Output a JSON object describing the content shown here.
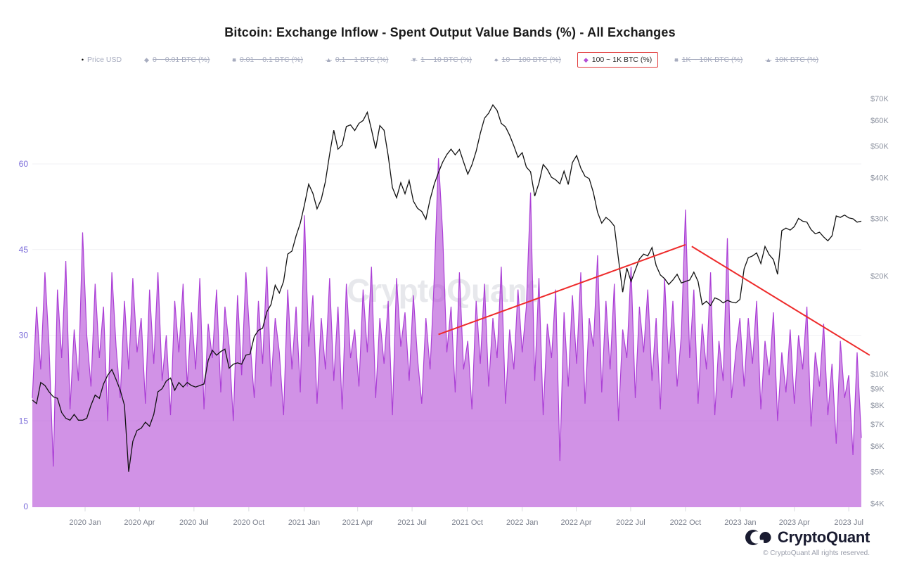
{
  "title": "Bitcoin: Exchange Inflow - Spent Output Value Bands (%) - All Exchanges",
  "legend": {
    "items": [
      {
        "label": "Price USD",
        "marker": "dot",
        "state": "price"
      },
      {
        "label": "0 ~ 0.01 BTC (%)",
        "marker": "diamond",
        "state": "disabled"
      },
      {
        "label": "0.01 ~ 0.1 BTC (%)",
        "marker": "square",
        "state": "disabled"
      },
      {
        "label": "0.1 ~ 1 BTC (%)",
        "marker": "triangle-up",
        "state": "disabled"
      },
      {
        "label": "1 ~ 10 BTC (%)",
        "marker": "triangle-down",
        "state": "disabled"
      },
      {
        "label": "10 ~ 100 BTC (%)",
        "marker": "circle",
        "state": "disabled"
      },
      {
        "label": "100 ~ 1K BTC (%)",
        "marker": "diamond",
        "state": "active",
        "boxed": true
      },
      {
        "label": "1K ~ 10K BTC (%)",
        "marker": "square",
        "state": "disabled"
      },
      {
        "label": "10K BTC (%)",
        "marker": "triangle-up",
        "state": "disabled"
      }
    ]
  },
  "watermark": "CryptoQuant",
  "footer": {
    "brand": "CryptoQuant",
    "copyright": "© CryptoQuant All rights reserved."
  },
  "colors": {
    "inflow_line": "#ab3fd6",
    "inflow_fill": "rgba(180,79,214,0.62)",
    "price_line": "#111111",
    "trendline": "#ee2b2b",
    "highlight_box": "#e13b3b",
    "left_axis_text": "#7b6cd9",
    "right_axis_text": "#8d93a0",
    "x_axis_text": "#787d8a",
    "grid": "#f1f1f4",
    "tick": "#d9dbe0"
  },
  "chart_data": {
    "type": "area+line",
    "title": "Bitcoin: Exchange Inflow - Spent Output Value Bands (%) - All Exchanges",
    "x_start_date": "2019-10-06",
    "x_step": "1 week",
    "x_ticks": [
      {
        "label": "2020 Jan",
        "week": 12.6
      },
      {
        "label": "2020 Apr",
        "week": 25.6
      },
      {
        "label": "2020 Jul",
        "week": 38.6
      },
      {
        "label": "2020 Oct",
        "week": 51.7
      },
      {
        "label": "2021 Jan",
        "week": 64.9
      },
      {
        "label": "2021 Apr",
        "week": 77.7
      },
      {
        "label": "2021 Jul",
        "week": 90.7
      },
      {
        "label": "2021 Oct",
        "week": 103.9
      },
      {
        "label": "2022 Jan",
        "week": 117.0
      },
      {
        "label": "2022 Apr",
        "week": 129.9
      },
      {
        "label": "2022 Jul",
        "week": 142.9
      },
      {
        "label": "2022 Oct",
        "week": 156.0
      },
      {
        "label": "2023 Jan",
        "week": 169.1
      },
      {
        "label": "2023 Apr",
        "week": 182.0
      },
      {
        "label": "2023 Jul",
        "week": 195.0
      }
    ],
    "left_axis": {
      "title": "Spent Output Value Band share (%)",
      "ticks": [
        0,
        15,
        30,
        45,
        60
      ],
      "range": [
        0,
        72.7
      ],
      "scale": "linear"
    },
    "right_axis": {
      "title": "Price USD",
      "scale": "log",
      "ticks": [
        {
          "label": "$70K",
          "value_k": 70
        },
        {
          "label": "$60K",
          "value_k": 60
        },
        {
          "label": "$50K",
          "value_k": 50
        },
        {
          "label": "$40K",
          "value_k": 40
        },
        {
          "label": "$30K",
          "value_k": 30
        },
        {
          "label": "$20K",
          "value_k": 20
        },
        {
          "label": "$10K",
          "value_k": 10
        },
        {
          "label": "$9K",
          "value_k": 9
        },
        {
          "label": "$8K",
          "value_k": 8
        },
        {
          "label": "$7K",
          "value_k": 7
        },
        {
          "label": "$6K",
          "value_k": 6
        },
        {
          "label": "$5K",
          "value_k": 5
        },
        {
          "label": "$4K",
          "value_k": 4
        }
      ]
    },
    "series": [
      {
        "name": "100 ~ 1K BTC (%)",
        "axis": "left",
        "render": "area",
        "values": [
          19,
          35,
          24,
          41,
          28,
          7,
          38,
          26,
          43,
          17,
          31,
          22,
          48,
          30,
          21,
          39,
          26,
          35,
          15,
          41,
          28,
          19,
          36,
          24,
          40,
          27,
          33,
          18,
          38,
          25,
          41,
          22,
          30,
          16,
          36,
          27,
          39,
          21,
          34,
          24,
          40,
          17,
          32,
          26,
          38,
          20,
          35,
          28,
          15,
          37,
          23,
          41,
          29,
          19,
          36,
          25,
          42,
          21,
          33,
          27,
          16,
          38,
          24,
          35,
          20,
          51,
          28,
          37,
          18,
          33,
          24,
          40,
          22,
          35,
          17,
          39,
          26,
          31,
          21,
          38,
          27,
          42,
          19,
          33,
          25,
          36,
          16,
          40,
          28,
          34,
          22,
          37,
          26,
          18,
          33,
          24,
          40,
          61,
          48,
          27,
          35,
          20,
          41,
          24,
          29,
          17,
          36,
          25,
          39,
          21,
          33,
          26,
          42,
          18,
          31,
          24,
          38,
          27,
          35,
          55,
          22,
          40,
          16,
          32,
          26,
          38,
          8,
          34,
          21,
          37,
          25,
          41,
          18,
          33,
          28,
          44,
          20,
          36,
          24,
          39,
          15,
          31,
          26,
          42,
          19,
          35,
          27,
          38,
          22,
          33,
          17,
          40,
          25,
          36,
          21,
          30,
          52,
          26,
          38,
          18,
          32,
          24,
          41,
          16,
          29,
          22,
          47,
          19,
          27,
          33,
          21,
          33,
          25,
          36,
          17,
          29,
          23,
          34,
          15,
          27,
          20,
          31,
          18,
          30,
          24,
          35,
          14,
          27,
          21,
          32,
          16,
          25,
          11,
          29,
          19,
          23,
          9,
          27,
          12
        ]
      },
      {
        "name": "Price USD",
        "axis": "right",
        "render": "line",
        "unit": "K USD",
        "values": [
          8.3,
          8.1,
          9.4,
          9.2,
          8.8,
          8.5,
          8.4,
          7.6,
          7.3,
          7.2,
          7.5,
          7.2,
          7.2,
          7.3,
          8.0,
          8.6,
          8.4,
          9.3,
          9.9,
          10.3,
          9.6,
          8.9,
          8.0,
          5.0,
          6.2,
          6.7,
          6.8,
          7.1,
          6.9,
          7.5,
          8.8,
          9.0,
          9.5,
          9.7,
          8.9,
          9.4,
          9.1,
          9.4,
          9.2,
          9.1,
          9.2,
          9.3,
          11.0,
          11.8,
          11.4,
          11.7,
          11.9,
          10.4,
          10.7,
          10.8,
          10.7,
          11.4,
          11.5,
          13.0,
          13.6,
          13.8,
          15.5,
          16.3,
          18.7,
          17.7,
          19.2,
          23.3,
          23.8,
          26.5,
          29.0,
          33.0,
          38.2,
          35.8,
          32.1,
          34.3,
          38.9,
          47.2,
          55.9,
          48.9,
          50.4,
          57.4,
          58.1,
          55.8,
          58.7,
          59.9,
          63.5,
          56.2,
          49.1,
          57.8,
          55.9,
          46.7,
          37.3,
          34.7,
          38.6,
          35.7,
          39.2,
          33.9,
          32.2,
          31.5,
          29.8,
          34.3,
          38.2,
          41.5,
          44.6,
          47.1,
          48.9,
          47.0,
          48.8,
          44.7,
          41.0,
          43.8,
          48.2,
          54.7,
          60.9,
          63.1,
          66.9,
          64.3,
          58.7,
          57.3,
          54.0,
          50.1,
          46.2,
          47.7,
          43.1,
          41.7,
          35.1,
          38.5,
          43.9,
          42.4,
          40.1,
          39.4,
          38.3,
          41.9,
          38.1,
          44.5,
          46.8,
          42.8,
          40.4,
          39.7,
          36.0,
          31.3,
          29.0,
          30.2,
          29.5,
          28.4,
          22.5,
          17.8,
          21.1,
          19.2,
          20.8,
          22.5,
          23.3,
          23.0,
          24.4,
          21.5,
          20.1,
          19.6,
          18.8,
          19.4,
          20.2,
          19.0,
          19.2,
          19.4,
          20.5,
          19.2,
          16.3,
          16.7,
          16.2,
          17.1,
          16.9,
          16.5,
          16.8,
          16.6,
          16.5,
          16.9,
          21.0,
          22.7,
          23.0,
          23.5,
          21.8,
          24.6,
          23.2,
          22.4,
          20.2,
          27.5,
          28.0,
          27.6,
          28.3,
          30.0,
          29.4,
          29.2,
          27.7,
          26.9,
          27.2,
          26.3,
          25.6,
          26.5,
          30.5,
          30.2,
          30.7,
          30.1,
          29.9,
          29.2,
          29.4
        ]
      }
    ],
    "annotations": {
      "trendlines": [
        {
          "type": "rising",
          "from_week_pricek": [
            97,
            13.2
          ],
          "to_week_pricek": [
            156,
            24.9
          ]
        },
        {
          "type": "falling",
          "from_week_pricek": [
            157.5,
            24.6
          ],
          "to_week_pricek": [
            200,
            11.4
          ]
        }
      ]
    },
    "grid": "horizontal-only",
    "legend_position": "top"
  }
}
